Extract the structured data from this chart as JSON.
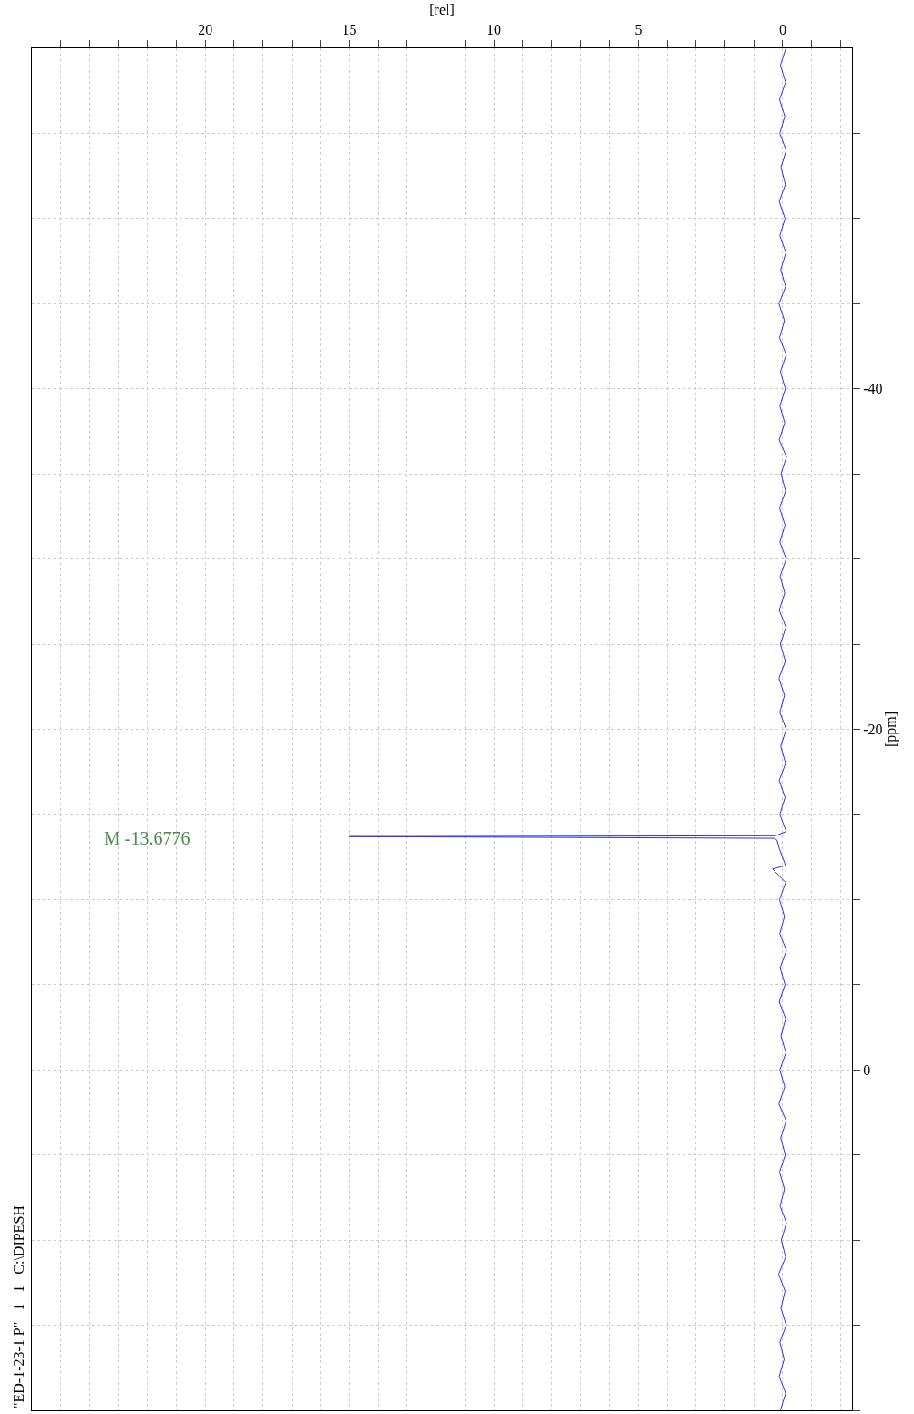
{
  "chart_data": {
    "type": "line",
    "xlabel": "[rel]",
    "ylabel": "[ppm]",
    "series": [
      {
        "color": "#3030f0",
        "x": [
          0.08,
          -0.1,
          0.12,
          -0.05,
          0.1,
          -0.12,
          0.06,
          -0.08,
          0.14,
          -0.1,
          0.05,
          -0.13,
          0.09,
          -0.06,
          0.11,
          -0.09,
          0.07,
          -0.12,
          0.13,
          -0.07,
          0.1,
          -0.11,
          0.06,
          -0.1,
          0.12,
          -0.08,
          0.09,
          -0.13,
          0.1,
          -0.06,
          0.11,
          -0.1,
          0.35,
          -0.1,
          0.12,
          0.2,
          0.3,
          15.0,
          0.25,
          -0.12,
          0.1,
          -0.08,
          0.12,
          -0.1,
          0.07,
          -0.12,
          0.1,
          -0.06,
          0.13,
          -0.09,
          0.08,
          -0.11,
          0.12,
          -0.07,
          0.09,
          -0.12,
          0.1,
          -0.08,
          0.11,
          -0.1,
          0.06,
          -0.13,
          0.12,
          -0.07,
          0.1,
          -0.09,
          0.08,
          -0.12,
          0.11,
          -0.06,
          0.13,
          -0.1,
          0.07,
          -0.11,
          0.1,
          -0.08,
          0.12,
          -0.09,
          0.06,
          -0.12,
          0.1,
          -0.07,
          0.11,
          -0.1,
          0.08,
          -0.11
        ],
        "values": [
          20,
          19,
          18,
          17,
          16,
          15,
          14,
          13,
          12,
          11,
          10,
          9,
          8,
          7,
          6,
          5,
          4,
          3,
          2,
          1,
          0,
          -1,
          -2,
          -3,
          -4,
          -5,
          -6,
          -7,
          -8,
          -9,
          -10,
          -11,
          -11.8,
          -12,
          -13,
          -13.5,
          -13.6,
          -13.7,
          -13.75,
          -14,
          -15,
          -16,
          -17,
          -18,
          -19,
          -20,
          -21,
          -22,
          -23,
          -24,
          -25,
          -26,
          -27,
          -28,
          -29,
          -30,
          -31,
          -32,
          -33,
          -34,
          -35,
          -36,
          -37,
          -38,
          -39,
          -40,
          -41,
          -42,
          -43,
          -44,
          -45,
          -46,
          -47,
          -48,
          -49,
          -50,
          -51,
          -52,
          -53,
          -54,
          -55,
          -56,
          -57,
          -58,
          -59,
          -60
        ]
      }
    ],
    "xlim": [
      26,
      -2.4
    ],
    "xticks": [
      {
        "value": 25,
        "label": null
      },
      {
        "value": 24,
        "label": null
      },
      {
        "value": 23,
        "label": null
      },
      {
        "value": 22,
        "label": null
      },
      {
        "value": 21,
        "label": null
      },
      20,
      {
        "value": 19,
        "label": null
      },
      {
        "value": 18,
        "label": null
      },
      {
        "value": 17,
        "label": null
      },
      {
        "value": 16,
        "label": null
      },
      15,
      {
        "value": 14,
        "label": null
      },
      {
        "value": 13,
        "label": null
      },
      {
        "value": 12,
        "label": null
      },
      {
        "value": 11,
        "label": null
      },
      10,
      {
        "value": 9,
        "label": null
      },
      {
        "value": 8,
        "label": null
      },
      {
        "value": 7,
        "label": null
      },
      {
        "value": 6,
        "label": null
      },
      5,
      {
        "value": 4,
        "label": null
      },
      {
        "value": 3,
        "label": null
      },
      {
        "value": 2,
        "label": null
      },
      {
        "value": 1,
        "label": null
      },
      0,
      {
        "value": -1,
        "label": null
      },
      {
        "value": -2,
        "label": null
      }
    ],
    "ylim": [
      20,
      -60
    ],
    "yticks": [
      {
        "value": 20,
        "label": null
      },
      {
        "value": 15,
        "label": null
      },
      {
        "value": 10,
        "label": null
      },
      {
        "value": 5,
        "label": null
      },
      0,
      {
        "value": -5,
        "label": null
      },
      {
        "value": -10,
        "label": null
      },
      {
        "value": -15,
        "label": null
      },
      -20,
      {
        "value": -25,
        "label": null
      },
      {
        "value": -30,
        "label": null
      },
      {
        "value": -35,
        "label": null
      },
      -40,
      {
        "value": -45,
        "label": null
      },
      {
        "value": -50,
        "label": null
      },
      {
        "value": -55,
        "label": null
      }
    ],
    "grid": true,
    "annotations": [
      "M -13.6776",
      "\"ED-1-23-1 P\"   1   1   C:\\DIPESH"
    ]
  }
}
